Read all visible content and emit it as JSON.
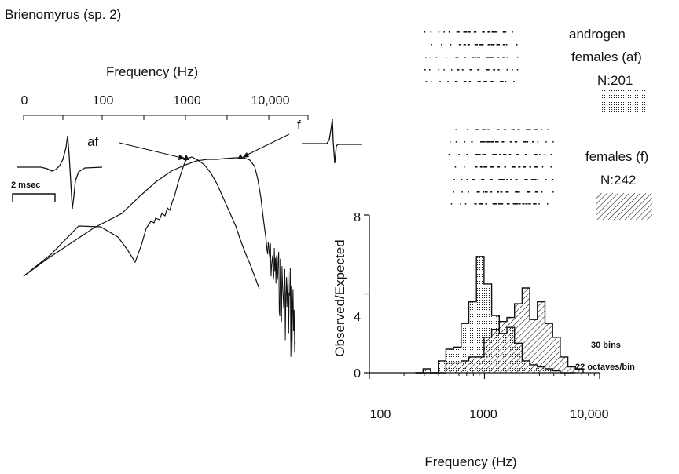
{
  "figure": {
    "title": "Brienomyrus (sp. 2)"
  },
  "spectrum_panel": {
    "xlabel": "Frequency (Hz)",
    "ticks": [
      "0",
      "100",
      "1000",
      "10,000"
    ],
    "label_af": "af",
    "label_f": "f",
    "scale_bar": "2 msec"
  },
  "groups": [
    {
      "line1": "androgen",
      "line2": "females (af)",
      "n": "N:201",
      "pattern": "dots"
    },
    {
      "line1": "",
      "line2": "females (f)",
      "n": "N:242",
      "pattern": "hatch"
    }
  ],
  "histogram": {
    "bins_note": "30 bins",
    "octaves_note": ".22 octaves/bin"
  },
  "chart_data": {
    "type": "bar",
    "ylabel": "Observed/Expected",
    "xlabel": "Frequency (Hz)",
    "x_scale": "log",
    "xlim": [
      100,
      10000
    ],
    "ylim": [
      0,
      8
    ],
    "yticks": [
      "0",
      "4",
      "8"
    ],
    "xticks": [
      "100",
      "1000",
      "10,000"
    ],
    "bin_width_octaves": 0.22,
    "bin_start_hz": 251,
    "series": [
      {
        "name": "androgen females (af)",
        "pattern": "dots",
        "values": [
          0,
          0.2,
          0,
          0.6,
          1.2,
          1.3,
          2.5,
          3.6,
          5.9,
          4.5,
          2.9,
          2.0,
          2.3,
          1.5,
          0.6,
          0.4,
          0.3,
          0.2,
          0.1,
          0,
          0
        ]
      },
      {
        "name": "females (f)",
        "pattern": "hatch",
        "values": [
          0,
          0,
          0,
          0,
          0.5,
          0.5,
          0.6,
          0.8,
          0.8,
          1.8,
          2.2,
          2.6,
          2.8,
          3.5,
          4.3,
          2.7,
          3.6,
          2.5,
          1.8,
          0.8,
          0.3,
          0.2
        ]
      }
    ]
  }
}
